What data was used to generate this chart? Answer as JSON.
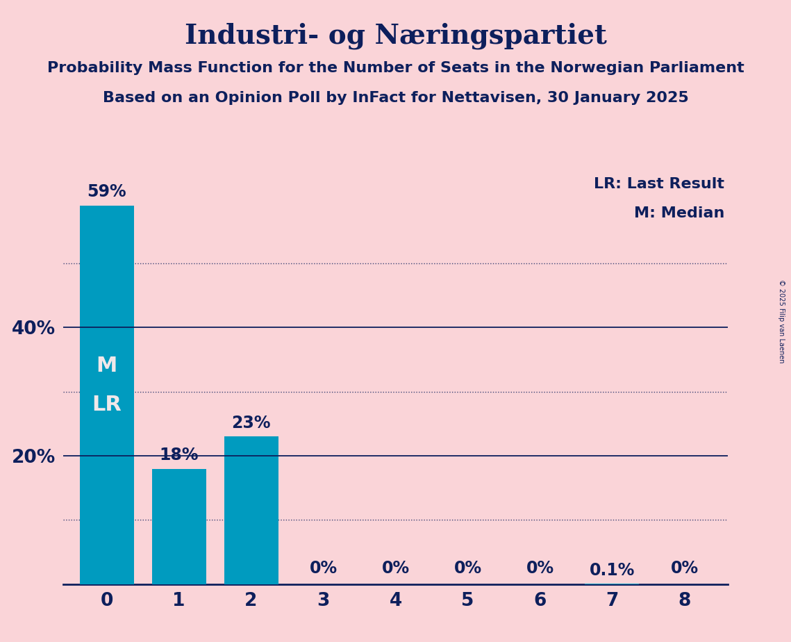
{
  "title": "Industri- og Næringspartiet",
  "subtitle1": "Probability Mass Function for the Number of Seats in the Norwegian Parliament",
  "subtitle2": "Based on an Opinion Poll by InFact for Nettavisen, 30 January 2025",
  "copyright": "© 2025 Filip van Laenen",
  "categories": [
    0,
    1,
    2,
    3,
    4,
    5,
    6,
    7,
    8
  ],
  "values": [
    59,
    18,
    23,
    0,
    0,
    0,
    0,
    0.1,
    0
  ],
  "value_labels": [
    "59%",
    "18%",
    "23%",
    "0%",
    "0%",
    "0%",
    "0%",
    "0.1%",
    "0%"
  ],
  "bar_color": "#009BBF",
  "background_color": "#FAD4D8",
  "text_color": "#0D1F5C",
  "bar_label_color_inside": "#F0E8EA",
  "yticks_solid": [
    20,
    40
  ],
  "yticks_dotted": [
    10,
    30,
    50
  ],
  "ylim": [
    0,
    65
  ],
  "legend_lr": "LR: Last Result",
  "legend_m": "M: Median",
  "title_fontsize": 28,
  "subtitle_fontsize": 16,
  "axis_label_fontsize": 19,
  "bar_label_fontsize": 17,
  "marker_fontsize": 22,
  "legend_fontsize": 16
}
